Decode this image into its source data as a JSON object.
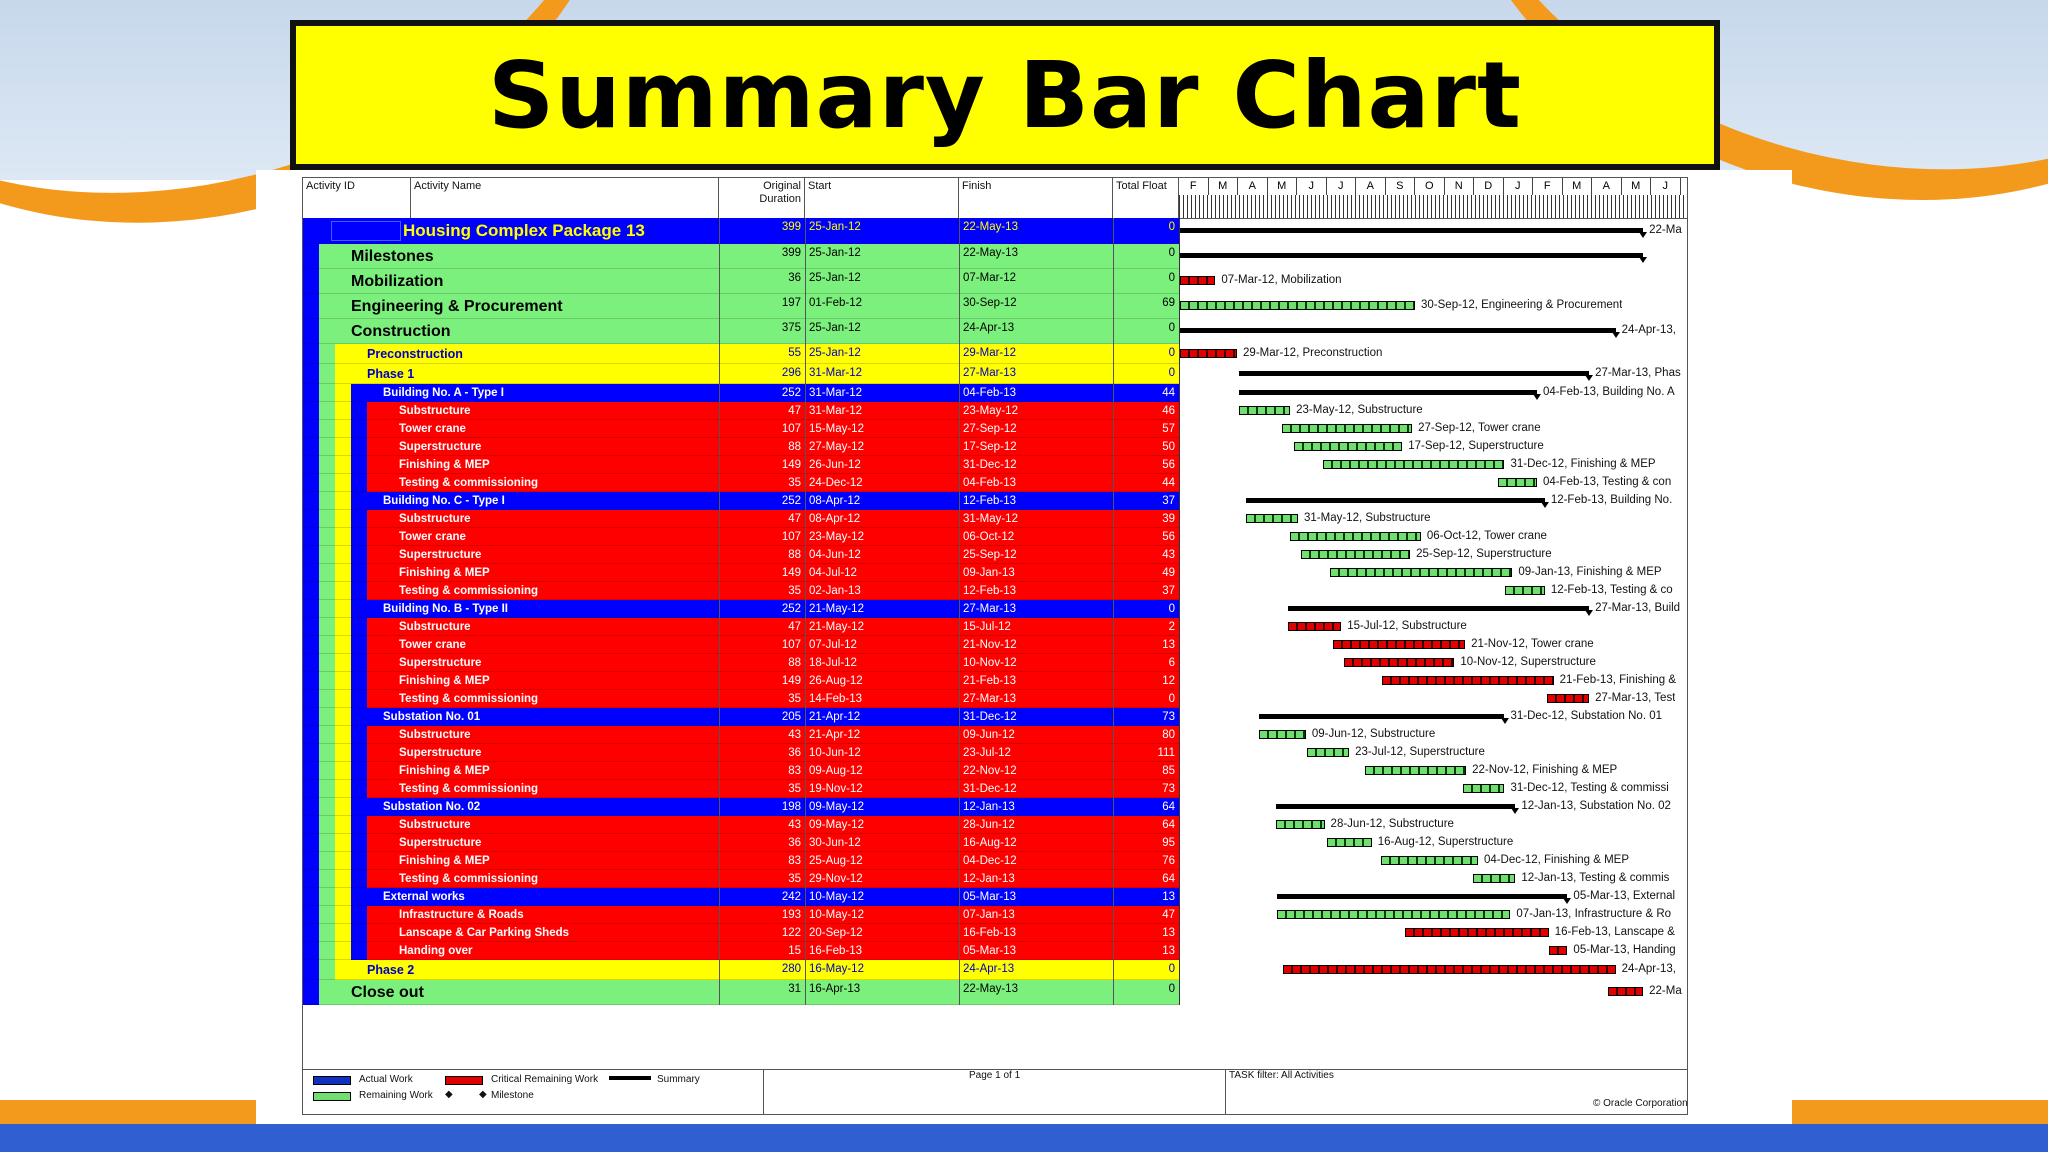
{
  "title": "Summary Bar Chart",
  "columns": {
    "activity_id": "Activity ID",
    "activity_name": "Activity Name",
    "duration_1": "Original",
    "duration_2": "Duration",
    "start": "Start",
    "finish": "Finish",
    "float": "Total Float"
  },
  "months": [
    "F",
    "M",
    "A",
    "M",
    "J",
    "J",
    "A",
    "S",
    "O",
    "N",
    "D",
    "J",
    "F",
    "M",
    "A",
    "M",
    "J"
  ],
  "colors": {
    "blue": "#0000ff",
    "green": "#7cf07c",
    "yellow": "#ffff00",
    "red": "#ff0000",
    "crit": "#e00000",
    "remaining": "#6fe06f"
  },
  "rows": [
    {
      "name": "Housing Complex Package 13",
      "dur": "399",
      "start": "25-Jan-12",
      "finish": "22-May-13",
      "float": "0",
      "level": 0,
      "label": "22-Ma"
    },
    {
      "name": "Milestones",
      "dur": "399",
      "start": "25-Jan-12",
      "finish": "22-May-13",
      "float": "0",
      "level": 1,
      "label": ""
    },
    {
      "name": "Mobilization",
      "dur": "36",
      "start": "25-Jan-12",
      "finish": "07-Mar-12",
      "float": "0",
      "level": 1,
      "label": "07-Mar-12, Mobilization"
    },
    {
      "name": "Engineering & Procurement",
      "dur": "197",
      "start": "01-Feb-12",
      "finish": "30-Sep-12",
      "float": "69",
      "level": 1,
      "label": "30-Sep-12, Engineering & Procurement"
    },
    {
      "name": "Construction",
      "dur": "375",
      "start": "25-Jan-12",
      "finish": "24-Apr-13",
      "float": "0",
      "level": 1,
      "label": "24-Apr-13,"
    },
    {
      "name": "Preconstruction",
      "dur": "55",
      "start": "25-Jan-12",
      "finish": "29-Mar-12",
      "float": "0",
      "level": 2,
      "label": "29-Mar-12, Preconstruction"
    },
    {
      "name": "Phase 1",
      "dur": "296",
      "start": "31-Mar-12",
      "finish": "27-Mar-13",
      "float": "0",
      "level": 2,
      "label": "27-Mar-13, Phas"
    },
    {
      "name": "Building No. A - Type I",
      "dur": "252",
      "start": "31-Mar-12",
      "finish": "04-Feb-13",
      "float": "44",
      "level": 3,
      "label": "04-Feb-13, Building No. A"
    },
    {
      "name": "Substructure",
      "dur": "47",
      "start": "31-Mar-12",
      "finish": "23-May-12",
      "float": "46",
      "level": 4,
      "label": "23-May-12, Substructure"
    },
    {
      "name": "Tower crane",
      "dur": "107",
      "start": "15-May-12",
      "finish": "27-Sep-12",
      "float": "57",
      "level": 4,
      "label": "27-Sep-12, Tower crane"
    },
    {
      "name": "Superstructure",
      "dur": "88",
      "start": "27-May-12",
      "finish": "17-Sep-12",
      "float": "50",
      "level": 4,
      "label": "17-Sep-12, Superstructure"
    },
    {
      "name": "Finishing & MEP",
      "dur": "149",
      "start": "26-Jun-12",
      "finish": "31-Dec-12",
      "float": "56",
      "level": 4,
      "label": "31-Dec-12, Finishing & MEP"
    },
    {
      "name": "Testing & commissioning",
      "dur": "35",
      "start": "24-Dec-12",
      "finish": "04-Feb-13",
      "float": "44",
      "level": 4,
      "label": "04-Feb-13, Testing & con"
    },
    {
      "name": "Building No. C - Type I",
      "dur": "252",
      "start": "08-Apr-12",
      "finish": "12-Feb-13",
      "float": "37",
      "level": 3,
      "label": "12-Feb-13, Building No."
    },
    {
      "name": "Substructure",
      "dur": "47",
      "start": "08-Apr-12",
      "finish": "31-May-12",
      "float": "39",
      "level": 4,
      "label": "31-May-12, Substructure"
    },
    {
      "name": "Tower crane",
      "dur": "107",
      "start": "23-May-12",
      "finish": "06-Oct-12",
      "float": "56",
      "level": 4,
      "label": "06-Oct-12, Tower crane"
    },
    {
      "name": "Superstructure",
      "dur": "88",
      "start": "04-Jun-12",
      "finish": "25-Sep-12",
      "float": "43",
      "level": 4,
      "label": "25-Sep-12, Superstructure"
    },
    {
      "name": "Finishing & MEP",
      "dur": "149",
      "start": "04-Jul-12",
      "finish": "09-Jan-13",
      "float": "49",
      "level": 4,
      "label": "09-Jan-13, Finishing & MEP"
    },
    {
      "name": "Testing & commissioning",
      "dur": "35",
      "start": "02-Jan-13",
      "finish": "12-Feb-13",
      "float": "37",
      "level": 4,
      "label": "12-Feb-13, Testing & co"
    },
    {
      "name": "Building No. B - Type II",
      "dur": "252",
      "start": "21-May-12",
      "finish": "27-Mar-13",
      "float": "0",
      "level": 3,
      "label": "27-Mar-13, Build"
    },
    {
      "name": "Substructure",
      "dur": "47",
      "start": "21-May-12",
      "finish": "15-Jul-12",
      "float": "2",
      "level": 4,
      "label": "15-Jul-12, Substructure"
    },
    {
      "name": "Tower crane",
      "dur": "107",
      "start": "07-Jul-12",
      "finish": "21-Nov-12",
      "float": "13",
      "level": 4,
      "label": "21-Nov-12, Tower crane"
    },
    {
      "name": "Superstructure",
      "dur": "88",
      "start": "18-Jul-12",
      "finish": "10-Nov-12",
      "float": "6",
      "level": 4,
      "label": "10-Nov-12, Superstructure"
    },
    {
      "name": "Finishing & MEP",
      "dur": "149",
      "start": "26-Aug-12",
      "finish": "21-Feb-13",
      "float": "12",
      "level": 4,
      "label": "21-Feb-13, Finishing &"
    },
    {
      "name": "Testing & commissioning",
      "dur": "35",
      "start": "14-Feb-13",
      "finish": "27-Mar-13",
      "float": "0",
      "level": 4,
      "label": "27-Mar-13, Test"
    },
    {
      "name": "Substation No. 01",
      "dur": "205",
      "start": "21-Apr-12",
      "finish": "31-Dec-12",
      "float": "73",
      "level": 3,
      "label": "31-Dec-12, Substation No. 01"
    },
    {
      "name": "Substructure",
      "dur": "43",
      "start": "21-Apr-12",
      "finish": "09-Jun-12",
      "float": "80",
      "level": 4,
      "label": "09-Jun-12, Substructure"
    },
    {
      "name": "Superstructure",
      "dur": "36",
      "start": "10-Jun-12",
      "finish": "23-Jul-12",
      "float": "111",
      "level": 4,
      "label": "23-Jul-12, Superstructure"
    },
    {
      "name": "Finishing & MEP",
      "dur": "83",
      "start": "09-Aug-12",
      "finish": "22-Nov-12",
      "float": "85",
      "level": 4,
      "label": "22-Nov-12, Finishing & MEP"
    },
    {
      "name": "Testing & commissioning",
      "dur": "35",
      "start": "19-Nov-12",
      "finish": "31-Dec-12",
      "float": "73",
      "level": 4,
      "label": "31-Dec-12, Testing & commissi"
    },
    {
      "name": "Substation No. 02",
      "dur": "198",
      "start": "09-May-12",
      "finish": "12-Jan-13",
      "float": "64",
      "level": 3,
      "label": "12-Jan-13, Substation No. 02"
    },
    {
      "name": "Substructure",
      "dur": "43",
      "start": "09-May-12",
      "finish": "28-Jun-12",
      "float": "64",
      "level": 4,
      "label": "28-Jun-12, Substructure"
    },
    {
      "name": "Superstructure",
      "dur": "36",
      "start": "30-Jun-12",
      "finish": "16-Aug-12",
      "float": "95",
      "level": 4,
      "label": "16-Aug-12, Superstructure"
    },
    {
      "name": "Finishing & MEP",
      "dur": "83",
      "start": "25-Aug-12",
      "finish": "04-Dec-12",
      "float": "76",
      "level": 4,
      "label": "04-Dec-12, Finishing & MEP"
    },
    {
      "name": "Testing & commissioning",
      "dur": "35",
      "start": "29-Nov-12",
      "finish": "12-Jan-13",
      "float": "64",
      "level": 4,
      "label": "12-Jan-13, Testing & commis"
    },
    {
      "name": "External works",
      "dur": "242",
      "start": "10-May-12",
      "finish": "05-Mar-13",
      "float": "13",
      "level": 3,
      "label": "05-Mar-13, External"
    },
    {
      "name": "Infrastructure & Roads",
      "dur": "193",
      "start": "10-May-12",
      "finish": "07-Jan-13",
      "float": "47",
      "level": 4,
      "label": "07-Jan-13, Infrastructure & Ro"
    },
    {
      "name": "Lanscape & Car Parking Sheds",
      "dur": "122",
      "start": "20-Sep-12",
      "finish": "16-Feb-13",
      "float": "13",
      "level": 4,
      "label": "16-Feb-13, Lanscape &"
    },
    {
      "name": "Handing over",
      "dur": "15",
      "start": "16-Feb-13",
      "finish": "05-Mar-13",
      "float": "13",
      "level": 4,
      "label": "05-Mar-13, Handing"
    },
    {
      "name": "Phase 2",
      "dur": "280",
      "start": "16-May-12",
      "finish": "24-Apr-13",
      "float": "0",
      "level": 2,
      "label": "24-Apr-13,"
    },
    {
      "name": "Close out",
      "dur": "31",
      "start": "16-Apr-13",
      "finish": "22-May-13",
      "float": "0",
      "level": 1,
      "label": "22-Ma"
    }
  ],
  "legend": {
    "actual_work": "Actual Work",
    "remaining_work": "Remaining Work",
    "critical": "Critical Remaining Work",
    "milestone": "Milestone",
    "summary": "Summary",
    "page": "Page 1 of 1",
    "filter": "TASK filter: All Activities",
    "copyright": "© Oracle Corporation"
  }
}
